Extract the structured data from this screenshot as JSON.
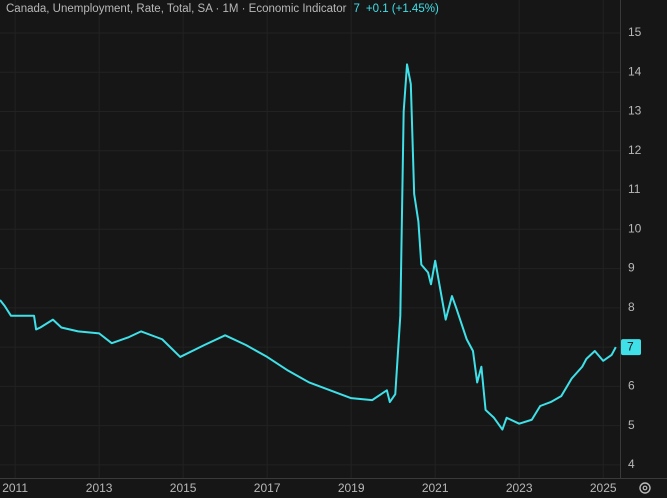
{
  "chart_data": {
    "type": "line",
    "title": "Canada, Unemployment, Rate, Total, SA · 1M · Economic Indicator",
    "annotations": [
      "7",
      "+0.1 (+1.45%)"
    ],
    "last_value_label": "7",
    "x": [
      2010.64,
      2010.75,
      2010.9,
      2011.45,
      2011.5,
      2011.6,
      2011.9,
      2012.1,
      2012.5,
      2013.0,
      2013.3,
      2013.7,
      2014.0,
      2014.5,
      2014.93,
      2015.5,
      2016.0,
      2016.5,
      2017.0,
      2017.5,
      2018.0,
      2018.5,
      2019.0,
      2019.5,
      2019.85,
      2019.92,
      2020.05,
      2020.17,
      2020.25,
      2020.33,
      2020.42,
      2020.5,
      2020.6,
      2020.67,
      2020.83,
      2020.9,
      2021.0,
      2021.1,
      2021.25,
      2021.4,
      2021.5,
      2021.75,
      2021.9,
      2022.0,
      2022.1,
      2022.2,
      2022.4,
      2022.6,
      2022.7,
      2023.0,
      2023.3,
      2023.5,
      2023.75,
      2024.0,
      2024.25,
      2024.5,
      2024.6,
      2024.8,
      2025.0,
      2025.2,
      2025.3
    ],
    "series": [
      {
        "name": "Canada, Unemployment, Rate, Total, SA",
        "color": "#3fe0e8",
        "values": [
          8.2,
          8.05,
          7.8,
          7.8,
          7.45,
          7.5,
          7.7,
          7.5,
          7.4,
          7.35,
          7.1,
          7.25,
          7.4,
          7.2,
          6.75,
          7.05,
          7.3,
          7.05,
          6.75,
          6.4,
          6.1,
          5.9,
          5.7,
          5.65,
          5.9,
          5.6,
          5.8,
          7.8,
          13.0,
          14.2,
          13.7,
          10.9,
          10.2,
          9.1,
          8.9,
          8.6,
          9.2,
          8.6,
          7.7,
          8.3,
          8.0,
          7.2,
          6.9,
          6.1,
          6.5,
          5.4,
          5.2,
          4.9,
          5.2,
          5.05,
          5.15,
          5.5,
          5.6,
          5.75,
          6.2,
          6.5,
          6.7,
          6.9,
          6.65,
          6.8,
          7.0
        ]
      }
    ],
    "xlim": [
      2010.64,
      2025.4
    ],
    "xticks": [
      2011,
      2013,
      2015,
      2017,
      2019,
      2021,
      2023,
      2025
    ],
    "ylim": [
      3.87,
      15.84
    ],
    "yticks": [
      4,
      5,
      6,
      7,
      8,
      9,
      10,
      11,
      12,
      13,
      14,
      15
    ],
    "grid": true
  }
}
